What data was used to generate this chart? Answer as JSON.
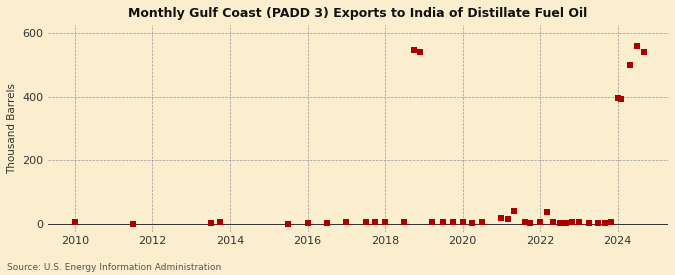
{
  "title": "Monthly Gulf Coast (PADD 3) Exports to India of Distillate Fuel Oil",
  "ylabel": "Thousand Barrels",
  "source": "Source: U.S. Energy Information Administration",
  "background_color": "#faeece",
  "plot_background_color": "#faeece",
  "marker_color": "#aa0000",
  "marker_size": 16,
  "ylim": [
    -25,
    625
  ],
  "yticks": [
    0,
    200,
    400,
    600
  ],
  "xlim": [
    2009.3,
    2025.3
  ],
  "xticks": [
    2010,
    2012,
    2014,
    2016,
    2018,
    2020,
    2022,
    2024
  ],
  "data_points": [
    [
      2010.0,
      5
    ],
    [
      2011.5,
      0
    ],
    [
      2013.5,
      3
    ],
    [
      2013.75,
      5
    ],
    [
      2015.5,
      0
    ],
    [
      2016.0,
      3
    ],
    [
      2016.5,
      3
    ],
    [
      2017.0,
      5
    ],
    [
      2017.5,
      5
    ],
    [
      2017.75,
      5
    ],
    [
      2018.0,
      5
    ],
    [
      2018.5,
      5
    ],
    [
      2018.75,
      548
    ],
    [
      2018.9,
      540
    ],
    [
      2019.2,
      5
    ],
    [
      2019.5,
      5
    ],
    [
      2019.75,
      5
    ],
    [
      2020.0,
      5
    ],
    [
      2020.25,
      3
    ],
    [
      2020.5,
      5
    ],
    [
      2021.0,
      20
    ],
    [
      2021.17,
      15
    ],
    [
      2021.33,
      42
    ],
    [
      2021.6,
      5
    ],
    [
      2021.75,
      3
    ],
    [
      2022.0,
      5
    ],
    [
      2022.17,
      38
    ],
    [
      2022.33,
      5
    ],
    [
      2022.5,
      3
    ],
    [
      2022.67,
      3
    ],
    [
      2022.83,
      5
    ],
    [
      2023.0,
      5
    ],
    [
      2023.25,
      3
    ],
    [
      2023.5,
      3
    ],
    [
      2023.67,
      3
    ],
    [
      2023.83,
      5
    ],
    [
      2024.0,
      395
    ],
    [
      2024.08,
      393
    ],
    [
      2024.33,
      500
    ],
    [
      2024.5,
      560
    ],
    [
      2024.67,
      540
    ]
  ]
}
